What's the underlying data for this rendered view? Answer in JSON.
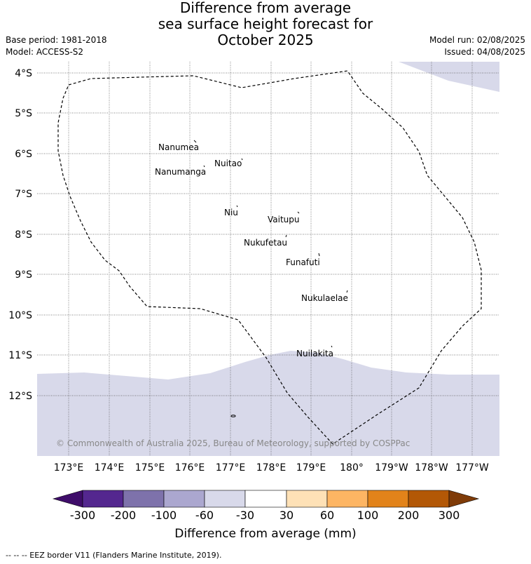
{
  "header": {
    "title_line1": "Difference from average",
    "title_line2": "sea surface height forecast for",
    "title_line3": "October 2025",
    "base_period": "Base period: 1981-2018",
    "model": "Model: ACCESS-S2",
    "model_run": "Model run: 02/08/2025",
    "issued": "Issued: 04/08/2025"
  },
  "map": {
    "lat_labels": [
      "4°S",
      "5°S",
      "6°S",
      "7°S",
      "8°S",
      "9°S",
      "10°S",
      "11°S",
      "12°S"
    ],
    "lon_labels": [
      "173°E",
      "174°E",
      "175°E",
      "176°E",
      "177°E",
      "178°E",
      "179°E",
      "180°",
      "179°W",
      "178°W",
      "177°W"
    ],
    "islands": [
      "Nanumea",
      "Nuitao",
      "Nanumanga",
      "Niu",
      "Vaitupu",
      "Nukufetau",
      "Funafuti",
      "Nukulaelae",
      "Nuilakita"
    ],
    "copyright": "© Commonwealth of Australia 2025, Bureau of Meteorology, supported by COSPPac",
    "field_color": "#d8d9ea",
    "background_color": "#ffffff"
  },
  "colorbar": {
    "title": "Difference from average (mm)",
    "labels": [
      "-300",
      "-200",
      "-100",
      "-60",
      "-30",
      "30",
      "60",
      "100",
      "200",
      "300"
    ],
    "colors": [
      "#3f0d6a",
      "#54278f",
      "#7e72ab",
      "#aba7cf",
      "#d8d9ea",
      "#ffffff",
      "#fee1b6",
      "#fdb563",
      "#e2831a",
      "#b35806",
      "#7f3b08"
    ]
  },
  "footnote": "-- -- -- EEZ border V11 (Flanders Marine Institute, 2019)."
}
